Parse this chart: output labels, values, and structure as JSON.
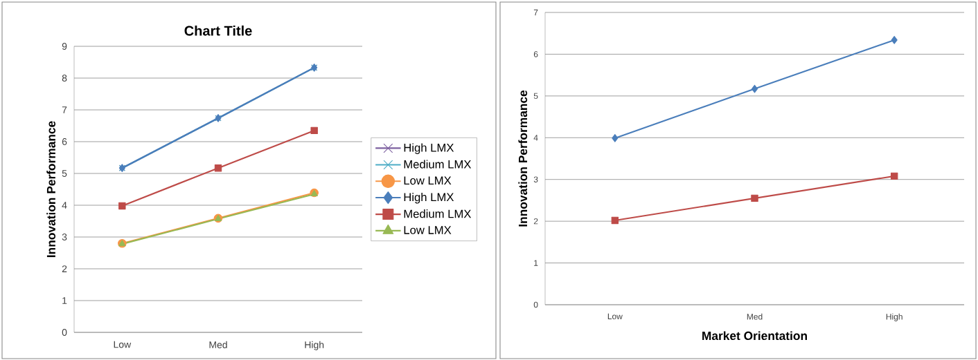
{
  "chart_data": [
    {
      "type": "line",
      "title": "Chart Title",
      "ylabel": "Innovation Performance",
      "categories": [
        "Low",
        "Med",
        "High"
      ],
      "series": [
        {
          "name": "High LMX",
          "color": "#7d60a0",
          "marker": "cross",
          "values": [
            5.17,
            6.74,
            8.33
          ]
        },
        {
          "name": "Medium LMX",
          "color": "#4bacc6",
          "marker": "cross",
          "values": [
            5.17,
            6.74,
            8.33
          ]
        },
        {
          "name": "Low LMX",
          "color": "#f79646",
          "marker": "circle",
          "values": [
            2.8,
            3.59,
            4.39
          ]
        },
        {
          "name": "High LMX",
          "color": "#4a7ebb",
          "marker": "diamond",
          "values": [
            5.17,
            6.74,
            8.33
          ]
        },
        {
          "name": "Medium LMX",
          "color": "#be4b48",
          "marker": "square",
          "values": [
            3.98,
            5.17,
            6.35
          ]
        },
        {
          "name": "Low LMX",
          "color": "#98b954",
          "marker": "triangle",
          "values": [
            2.78,
            3.57,
            4.35
          ]
        }
      ],
      "ylim": [
        0,
        9
      ],
      "yticks": [
        0,
        1,
        2,
        3,
        4,
        5,
        6,
        7,
        8,
        9
      ],
      "grid": "y",
      "legend": "right"
    },
    {
      "type": "line",
      "xlabel": "Market Orientation",
      "ylabel": "Innovation Performance",
      "categories": [
        "Low",
        "Med",
        "High"
      ],
      "series": [
        {
          "color": "#4a7ebb",
          "marker": "diamond",
          "values": [
            3.99,
            5.17,
            6.34
          ]
        },
        {
          "color": "#be4b48",
          "marker": "square",
          "values": [
            2.02,
            2.55,
            3.08
          ]
        }
      ],
      "ylim": [
        0,
        7
      ],
      "yticks": [
        0,
        1,
        2,
        3,
        4,
        5,
        6,
        7
      ],
      "grid": "y"
    }
  ]
}
